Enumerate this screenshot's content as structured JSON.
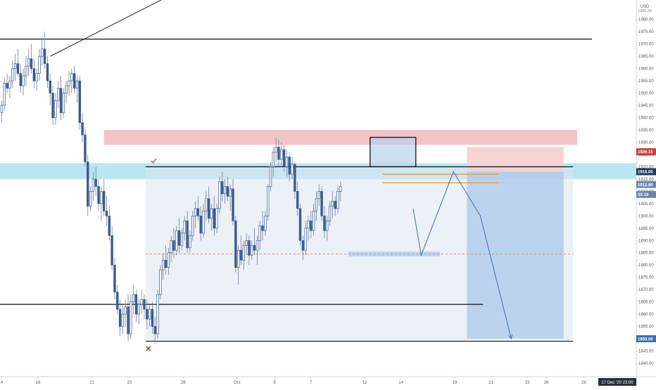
{
  "currency_label": "USD",
  "top_clipped_label": "1985.00",
  "colors": {
    "bull_candle": "#ffffff",
    "bear_candle": "#3b5b8c",
    "resistance_zone": "#f2b8bd",
    "support_zone": "#a8e0ef",
    "projection_box": "#b8d2ee",
    "sell_stop": "#f5cccf",
    "sell_target": "#a9c8ea",
    "orange_level": "#f0a040",
    "drawing_line": "#3a6fb0"
  },
  "price_badges": [
    {
      "value": "1926.15",
      "price": 1926.15,
      "color": "#c2403d"
    },
    {
      "value": "1918.00",
      "price": 1918.0,
      "color": "#1f3b5c"
    },
    {
      "value": "1912.80",
      "price": 1912.8,
      "color": "#6b86a8"
    },
    {
      "value": "39:19",
      "price": 1908.75,
      "color": "#6b86a8"
    },
    {
      "value": "1850.00",
      "price": 1850.0,
      "color": "#3a6fb0"
    }
  ],
  "marker_icons": [
    "checkmark-icon",
    "cross-icon"
  ],
  "timestamp_label": "17 Dec '20  23:00",
  "chart_data": {
    "type": "candlestick",
    "title": "",
    "xlabel": "",
    "ylabel": "",
    "ylim": [
      1836,
      1988
    ],
    "y_ticks": [
      1840,
      1845,
      1850,
      1855,
      1860,
      1865,
      1870,
      1875,
      1880,
      1885,
      1890,
      1895,
      1900,
      1905,
      1910,
      1915,
      1920,
      1925,
      1930,
      1935,
      1940,
      1945,
      1950,
      1955,
      1960,
      1965,
      1970,
      1975,
      1980
    ],
    "x_ticks": [
      {
        "label": "4",
        "x": 0
      },
      {
        "label": "16",
        "x": 13.5
      },
      {
        "label": "21",
        "x": 33.5
      },
      {
        "label": "23",
        "x": 47.5
      },
      {
        "label": "28",
        "x": 67.5
      },
      {
        "label": "Oct",
        "x": 87.5
      },
      {
        "label": "5",
        "x": 101.5
      },
      {
        "label": "7",
        "x": 115
      },
      {
        "label": "12",
        "x": 135
      },
      {
        "label": "14",
        "x": 148.5
      },
      {
        "label": "19",
        "x": 168.5
      },
      {
        "label": "21",
        "x": 182
      },
      {
        "label": "23",
        "x": 195.5
      },
      {
        "label": "26",
        "x": 202.5
      },
      {
        "label": "28",
        "x": 216.5
      }
    ],
    "candles": [
      [
        1942,
        1947,
        1938,
        1945
      ],
      [
        1945,
        1956,
        1943,
        1954
      ],
      [
        1954,
        1958,
        1950,
        1952
      ],
      [
        1952,
        1957,
        1948,
        1955
      ],
      [
        1955,
        1963,
        1952,
        1960
      ],
      [
        1960,
        1966,
        1955,
        1962
      ],
      [
        1962,
        1968,
        1957,
        1958
      ],
      [
        1958,
        1962,
        1950,
        1953
      ],
      [
        1953,
        1960,
        1949,
        1957
      ],
      [
        1957,
        1965,
        1953,
        1961
      ],
      [
        1961,
        1968,
        1957,
        1964
      ],
      [
        1964,
        1970,
        1958,
        1960
      ],
      [
        1960,
        1964,
        1952,
        1955
      ],
      [
        1955,
        1960,
        1951,
        1958
      ],
      [
        1958,
        1968,
        1955,
        1965
      ],
      [
        1965,
        1973,
        1961,
        1968
      ],
      [
        1968,
        1975,
        1960,
        1962
      ],
      [
        1962,
        1965,
        1952,
        1955
      ],
      [
        1955,
        1958,
        1945,
        1950
      ],
      [
        1950,
        1953,
        1937,
        1940
      ],
      [
        1940,
        1950,
        1937,
        1947
      ],
      [
        1947,
        1955,
        1944,
        1952
      ],
      [
        1952,
        1957,
        1939,
        1942
      ],
      [
        1942,
        1952,
        1940,
        1950
      ],
      [
        1950,
        1955,
        1946,
        1953
      ],
      [
        1953,
        1959,
        1949,
        1955
      ],
      [
        1955,
        1960,
        1950,
        1958
      ],
      [
        1958,
        1961,
        1950,
        1952
      ],
      [
        1952,
        1957,
        1946,
        1955
      ],
      [
        1955,
        1957,
        1935,
        1938
      ],
      [
        1938,
        1942,
        1930,
        1933
      ],
      [
        1933,
        1936,
        1920,
        1922
      ],
      [
        1922,
        1925,
        1900,
        1904
      ],
      [
        1904,
        1912,
        1902,
        1910
      ],
      [
        1910,
        1918,
        1906,
        1915
      ],
      [
        1915,
        1920,
        1908,
        1912
      ],
      [
        1912,
        1915,
        1902,
        1905
      ],
      [
        1905,
        1912,
        1898,
        1910
      ],
      [
        1910,
        1915,
        1900,
        1902
      ],
      [
        1902,
        1908,
        1896,
        1900
      ],
      [
        1900,
        1904,
        1890,
        1892
      ],
      [
        1892,
        1896,
        1878,
        1880
      ],
      [
        1880,
        1883,
        1866,
        1869
      ],
      [
        1869,
        1872,
        1860,
        1862
      ],
      [
        1862,
        1866,
        1851,
        1855
      ],
      [
        1855,
        1864,
        1852,
        1860
      ],
      [
        1860,
        1866,
        1855,
        1863
      ],
      [
        1863,
        1868,
        1849,
        1852
      ],
      [
        1852,
        1868,
        1850,
        1865
      ],
      [
        1865,
        1872,
        1860,
        1868
      ],
      [
        1868,
        1870,
        1857,
        1860
      ],
      [
        1860,
        1866,
        1856,
        1864
      ],
      [
        1864,
        1870,
        1860,
        1866
      ],
      [
        1866,
        1868,
        1858,
        1862
      ],
      [
        1862,
        1866,
        1854,
        1858
      ],
      [
        1858,
        1864,
        1855,
        1862
      ],
      [
        1862,
        1865,
        1852,
        1855
      ],
      [
        1855,
        1859,
        1848,
        1852
      ],
      [
        1852,
        1870,
        1850,
        1868
      ],
      [
        1868,
        1880,
        1866,
        1878
      ],
      [
        1878,
        1885,
        1874,
        1882
      ],
      [
        1882,
        1888,
        1876,
        1879
      ],
      [
        1879,
        1887,
        1876,
        1885
      ],
      [
        1885,
        1892,
        1881,
        1890
      ],
      [
        1890,
        1895,
        1883,
        1886
      ],
      [
        1886,
        1896,
        1884,
        1894
      ],
      [
        1894,
        1899,
        1885,
        1888
      ],
      [
        1888,
        1895,
        1886,
        1893
      ],
      [
        1893,
        1900,
        1890,
        1898
      ],
      [
        1898,
        1902,
        1885,
        1887
      ],
      [
        1887,
        1894,
        1885,
        1892
      ],
      [
        1892,
        1902,
        1890,
        1900
      ],
      [
        1900,
        1906,
        1895,
        1903
      ],
      [
        1903,
        1908,
        1898,
        1900
      ],
      [
        1900,
        1904,
        1890,
        1893
      ],
      [
        1893,
        1905,
        1891,
        1902
      ],
      [
        1902,
        1910,
        1898,
        1907
      ],
      [
        1907,
        1912,
        1897,
        1899
      ],
      [
        1899,
        1905,
        1894,
        1903
      ],
      [
        1903,
        1908,
        1892,
        1895
      ],
      [
        1895,
        1905,
        1893,
        1903
      ],
      [
        1903,
        1916,
        1901,
        1914
      ],
      [
        1914,
        1918,
        1906,
        1909
      ],
      [
        1909,
        1915,
        1905,
        1912
      ],
      [
        1912,
        1916,
        1906,
        1908
      ],
      [
        1908,
        1913,
        1902,
        1911
      ],
      [
        1911,
        1915,
        1896,
        1898
      ],
      [
        1898,
        1900,
        1877,
        1879
      ],
      [
        1879,
        1888,
        1872,
        1886
      ],
      [
        1886,
        1892,
        1880,
        1882
      ],
      [
        1882,
        1890,
        1878,
        1888
      ],
      [
        1888,
        1893,
        1884,
        1890
      ],
      [
        1890,
        1892,
        1880,
        1884
      ],
      [
        1884,
        1890,
        1882,
        1888
      ],
      [
        1888,
        1895,
        1884,
        1886
      ],
      [
        1886,
        1892,
        1880,
        1890
      ],
      [
        1890,
        1898,
        1886,
        1896
      ],
      [
        1896,
        1902,
        1890,
        1894
      ],
      [
        1894,
        1902,
        1892,
        1900
      ],
      [
        1900,
        1913,
        1898,
        1912
      ],
      [
        1912,
        1922,
        1910,
        1920
      ],
      [
        1920,
        1928,
        1916,
        1926
      ],
      [
        1926,
        1932,
        1922,
        1928
      ],
      [
        1928,
        1931,
        1920,
        1923
      ],
      [
        1923,
        1930,
        1920,
        1927
      ],
      [
        1927,
        1929,
        1918,
        1920
      ],
      [
        1920,
        1927,
        1916,
        1924
      ],
      [
        1924,
        1926,
        1914,
        1917
      ],
      [
        1917,
        1924,
        1915,
        1921
      ],
      [
        1921,
        1922,
        1907,
        1910
      ],
      [
        1910,
        1914,
        1900,
        1903
      ],
      [
        1903,
        1905,
        1888,
        1890
      ],
      [
        1890,
        1892,
        1882,
        1886
      ],
      [
        1886,
        1898,
        1884,
        1895
      ],
      [
        1895,
        1900,
        1890,
        1898
      ],
      [
        1898,
        1902,
        1891,
        1894
      ],
      [
        1894,
        1905,
        1892,
        1902
      ],
      [
        1902,
        1910,
        1898,
        1907
      ],
      [
        1907,
        1913,
        1904,
        1910
      ],
      [
        1910,
        1912,
        1898,
        1900
      ],
      [
        1900,
        1904,
        1891,
        1894
      ],
      [
        1894,
        1900,
        1890,
        1898
      ],
      [
        1898,
        1906,
        1896,
        1904
      ],
      [
        1904,
        1910,
        1899,
        1906
      ],
      [
        1906,
        1908,
        1900,
        1903
      ],
      [
        1903,
        1912,
        1901,
        1910
      ],
      [
        1910,
        1914,
        1906,
        1912
      ]
    ],
    "horizontal_levels": [
      {
        "name": "upper-resistance",
        "price": 1972,
        "x_from": -1,
        "x_to": 219.5
      },
      {
        "name": "lower-support",
        "price": 1864,
        "x_from": -1,
        "x_to": 179
      },
      {
        "name": "range-top",
        "price": 1920,
        "x_from": 53.5,
        "x_to": 212.5
      },
      {
        "name": "range-bottom",
        "price": 1849,
        "x_from": 53.5,
        "x_to": 212.5
      },
      {
        "name": "range-mid",
        "price": 1884.5,
        "x_from": 53.5,
        "x_to": 212.5,
        "style": "dashed"
      },
      {
        "name": "orange-level-1",
        "price": 1917,
        "x_from": 141.5,
        "x_to": 185
      },
      {
        "name": "orange-level-2",
        "price": 1913.5,
        "x_from": 141.5,
        "x_to": 185
      }
    ],
    "zones": [
      {
        "name": "resistance-zone",
        "from_price": 1929,
        "to_price": 1935,
        "x_from": 38,
        "x_to": 214
      },
      {
        "name": "support-zone",
        "from_price": 1915,
        "to_price": 1921.5,
        "x_from": -1,
        "x_to": 266
      },
      {
        "name": "projection-box",
        "from_price": 1849,
        "to_price": 1920,
        "x_from": 53.5,
        "x_to": 212.5
      },
      {
        "name": "pivot-box",
        "from_price": 1920,
        "to_price": 1932,
        "x_from": 137,
        "x_to": 154
      },
      {
        "name": "sell-stop-zone",
        "from_price": 1918,
        "to_price": 1928,
        "x_from": 173,
        "x_to": 209
      },
      {
        "name": "sell-target-zone",
        "from_price": 1850,
        "to_price": 1918,
        "x_from": 173,
        "x_to": 209
      },
      {
        "name": "demand-zone",
        "from_price": 1883.5,
        "to_price": 1885.5,
        "x_from": 129,
        "x_to": 163
      }
    ],
    "zigzag_path": [
      [
        153,
        1903
      ],
      [
        156,
        1884
      ],
      [
        168,
        1918
      ],
      [
        178,
        1900
      ],
      [
        189.5,
        1850
      ]
    ],
    "trend_line": [
      [
        18,
        1965
      ],
      [
        63,
        1990
      ]
    ],
    "markers": [
      {
        "type": "check",
        "x": 56.5,
        "price": 1922.5
      },
      {
        "type": "cross",
        "x": 54.5,
        "price": 1846
      }
    ],
    "grid": false,
    "legend": "none"
  }
}
